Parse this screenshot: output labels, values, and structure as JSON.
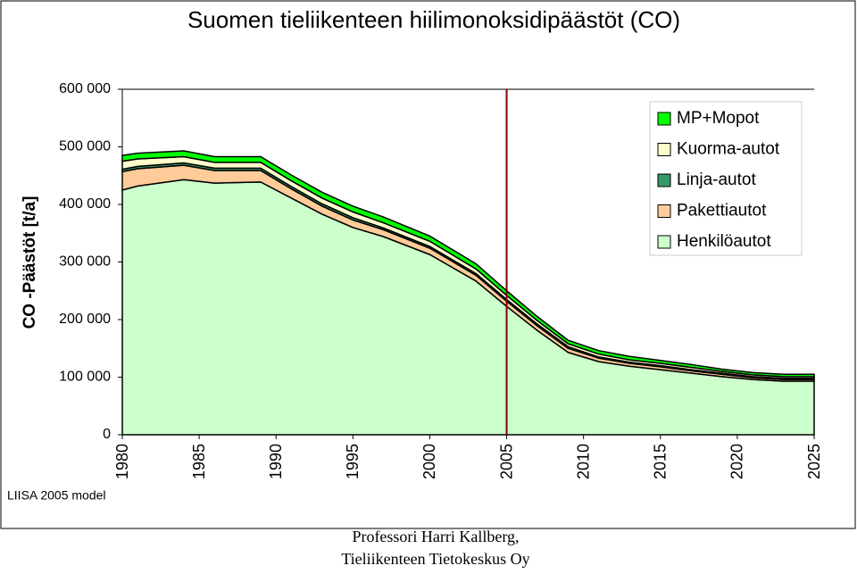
{
  "chart_data": {
    "type": "stacked-area",
    "title": "Suomen tieliikenteen hiilimonoksidipäästöt (CO)",
    "y_label": "CO -Päästöt [t/a]",
    "model_note": "LIISA 2005 model",
    "credit": [
      "Professori Harri Kallberg,",
      "Tieliikenteen Tietokeskus Oy"
    ],
    "x": [
      1980,
      1981,
      1984,
      1986,
      1989,
      1991,
      1993,
      1995,
      1997,
      2000,
      2003,
      2005,
      2007,
      2009,
      2011,
      2013,
      2015,
      2017,
      2019,
      2021,
      2023,
      2025
    ],
    "xlim": [
      1980,
      2025
    ],
    "xticks": [
      1980,
      1985,
      1990,
      1995,
      2000,
      2005,
      2010,
      2015,
      2020,
      2025
    ],
    "ylim": [
      0,
      600000
    ],
    "yticks": [
      0,
      {
        "value": 100000,
        "label": "100 000"
      },
      {
        "value": 200000,
        "label": "200 000"
      },
      {
        "value": 300000,
        "label": "300 000"
      },
      {
        "value": 400000,
        "label": "400 000"
      },
      {
        "value": 500000,
        "label": "500 000"
      },
      {
        "value": 600000,
        "label": "600 000"
      }
    ],
    "reference_line_x": 2005,
    "reference_line_color": "#800000",
    "series": [
      {
        "name": "Henkilöautot",
        "color": "#ccffcc",
        "values": [
          425000,
          432000,
          443000,
          437000,
          439000,
          411000,
          383000,
          360000,
          344000,
          313000,
          267000,
          223000,
          181000,
          143000,
          127000,
          119000,
          113000,
          107000,
          101000,
          96000,
          93000,
          93000
        ]
      },
      {
        "name": "Pakettiautot",
        "color": "#ffcc99",
        "values": [
          32000,
          30000,
          25000,
          22000,
          20000,
          16000,
          14000,
          13000,
          12000,
          11000,
          10000,
          9000,
          8000,
          7000,
          6000,
          5000,
          5000,
          4000,
          4000,
          3000,
          3000,
          3000
        ]
      },
      {
        "name": "Linja-autot",
        "color": "#339966",
        "values": [
          4000,
          4000,
          4000,
          4000,
          4000,
          4000,
          4000,
          4000,
          3000,
          3000,
          3000,
          3000,
          3000,
          3000,
          2000,
          2000,
          2000,
          2000,
          2000,
          2000,
          2000,
          2000
        ]
      },
      {
        "name": "Kuorma-autot",
        "color": "#ffffcc",
        "values": [
          14000,
          13000,
          11000,
          10000,
          10000,
          10000,
          10000,
          10000,
          9000,
          9000,
          8000,
          7000,
          6000,
          5000,
          5000,
          4000,
          4000,
          4000,
          3000,
          3000,
          3000,
          3000
        ]
      },
      {
        "name": "MP+Mopot",
        "color": "#00ff00",
        "values": [
          10000,
          10000,
          10000,
          10000,
          10000,
          10000,
          10000,
          10000,
          10000,
          9000,
          9000,
          8000,
          7000,
          6000,
          6000,
          6000,
          5000,
          5000,
          4000,
          4000,
          4000,
          4000
        ]
      }
    ]
  }
}
